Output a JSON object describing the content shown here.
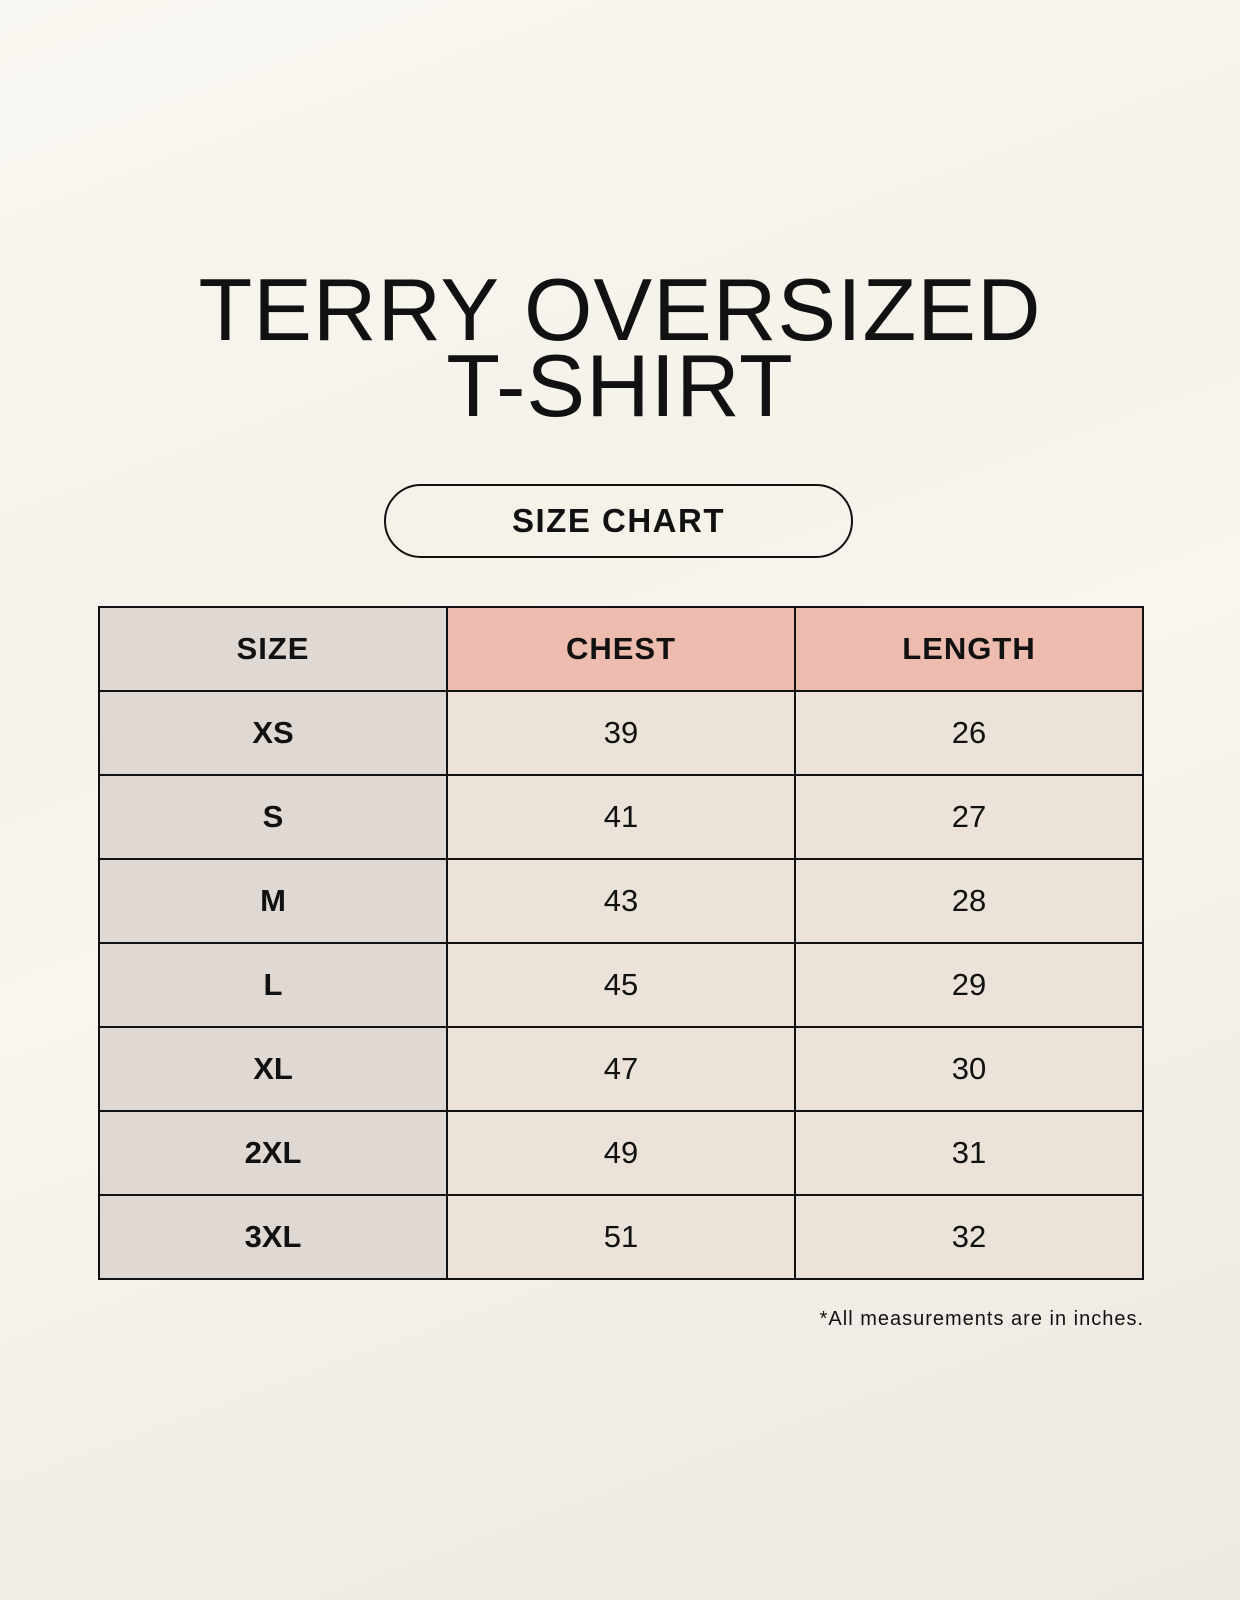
{
  "title_line1": "TERRY OVERSIZED",
  "title_line2": "T-SHIRT",
  "badge": "SIZE CHART",
  "table": {
    "headers": [
      "SIZE",
      "CHEST",
      "LENGTH"
    ],
    "rows": [
      [
        "XS",
        "39",
        "26"
      ],
      [
        "S",
        "41",
        "27"
      ],
      [
        "M",
        "43",
        "28"
      ],
      [
        "L",
        "45",
        "29"
      ],
      [
        "XL",
        "47",
        "30"
      ],
      [
        "2XL",
        "49",
        "31"
      ],
      [
        "3XL",
        "51",
        "32"
      ]
    ]
  },
  "footnote": "*All measurements are in inches.",
  "colors": {
    "header_accent": "#edbcaf",
    "size_column": "#e0d9d3",
    "value_cells": "#ebe3d9"
  }
}
